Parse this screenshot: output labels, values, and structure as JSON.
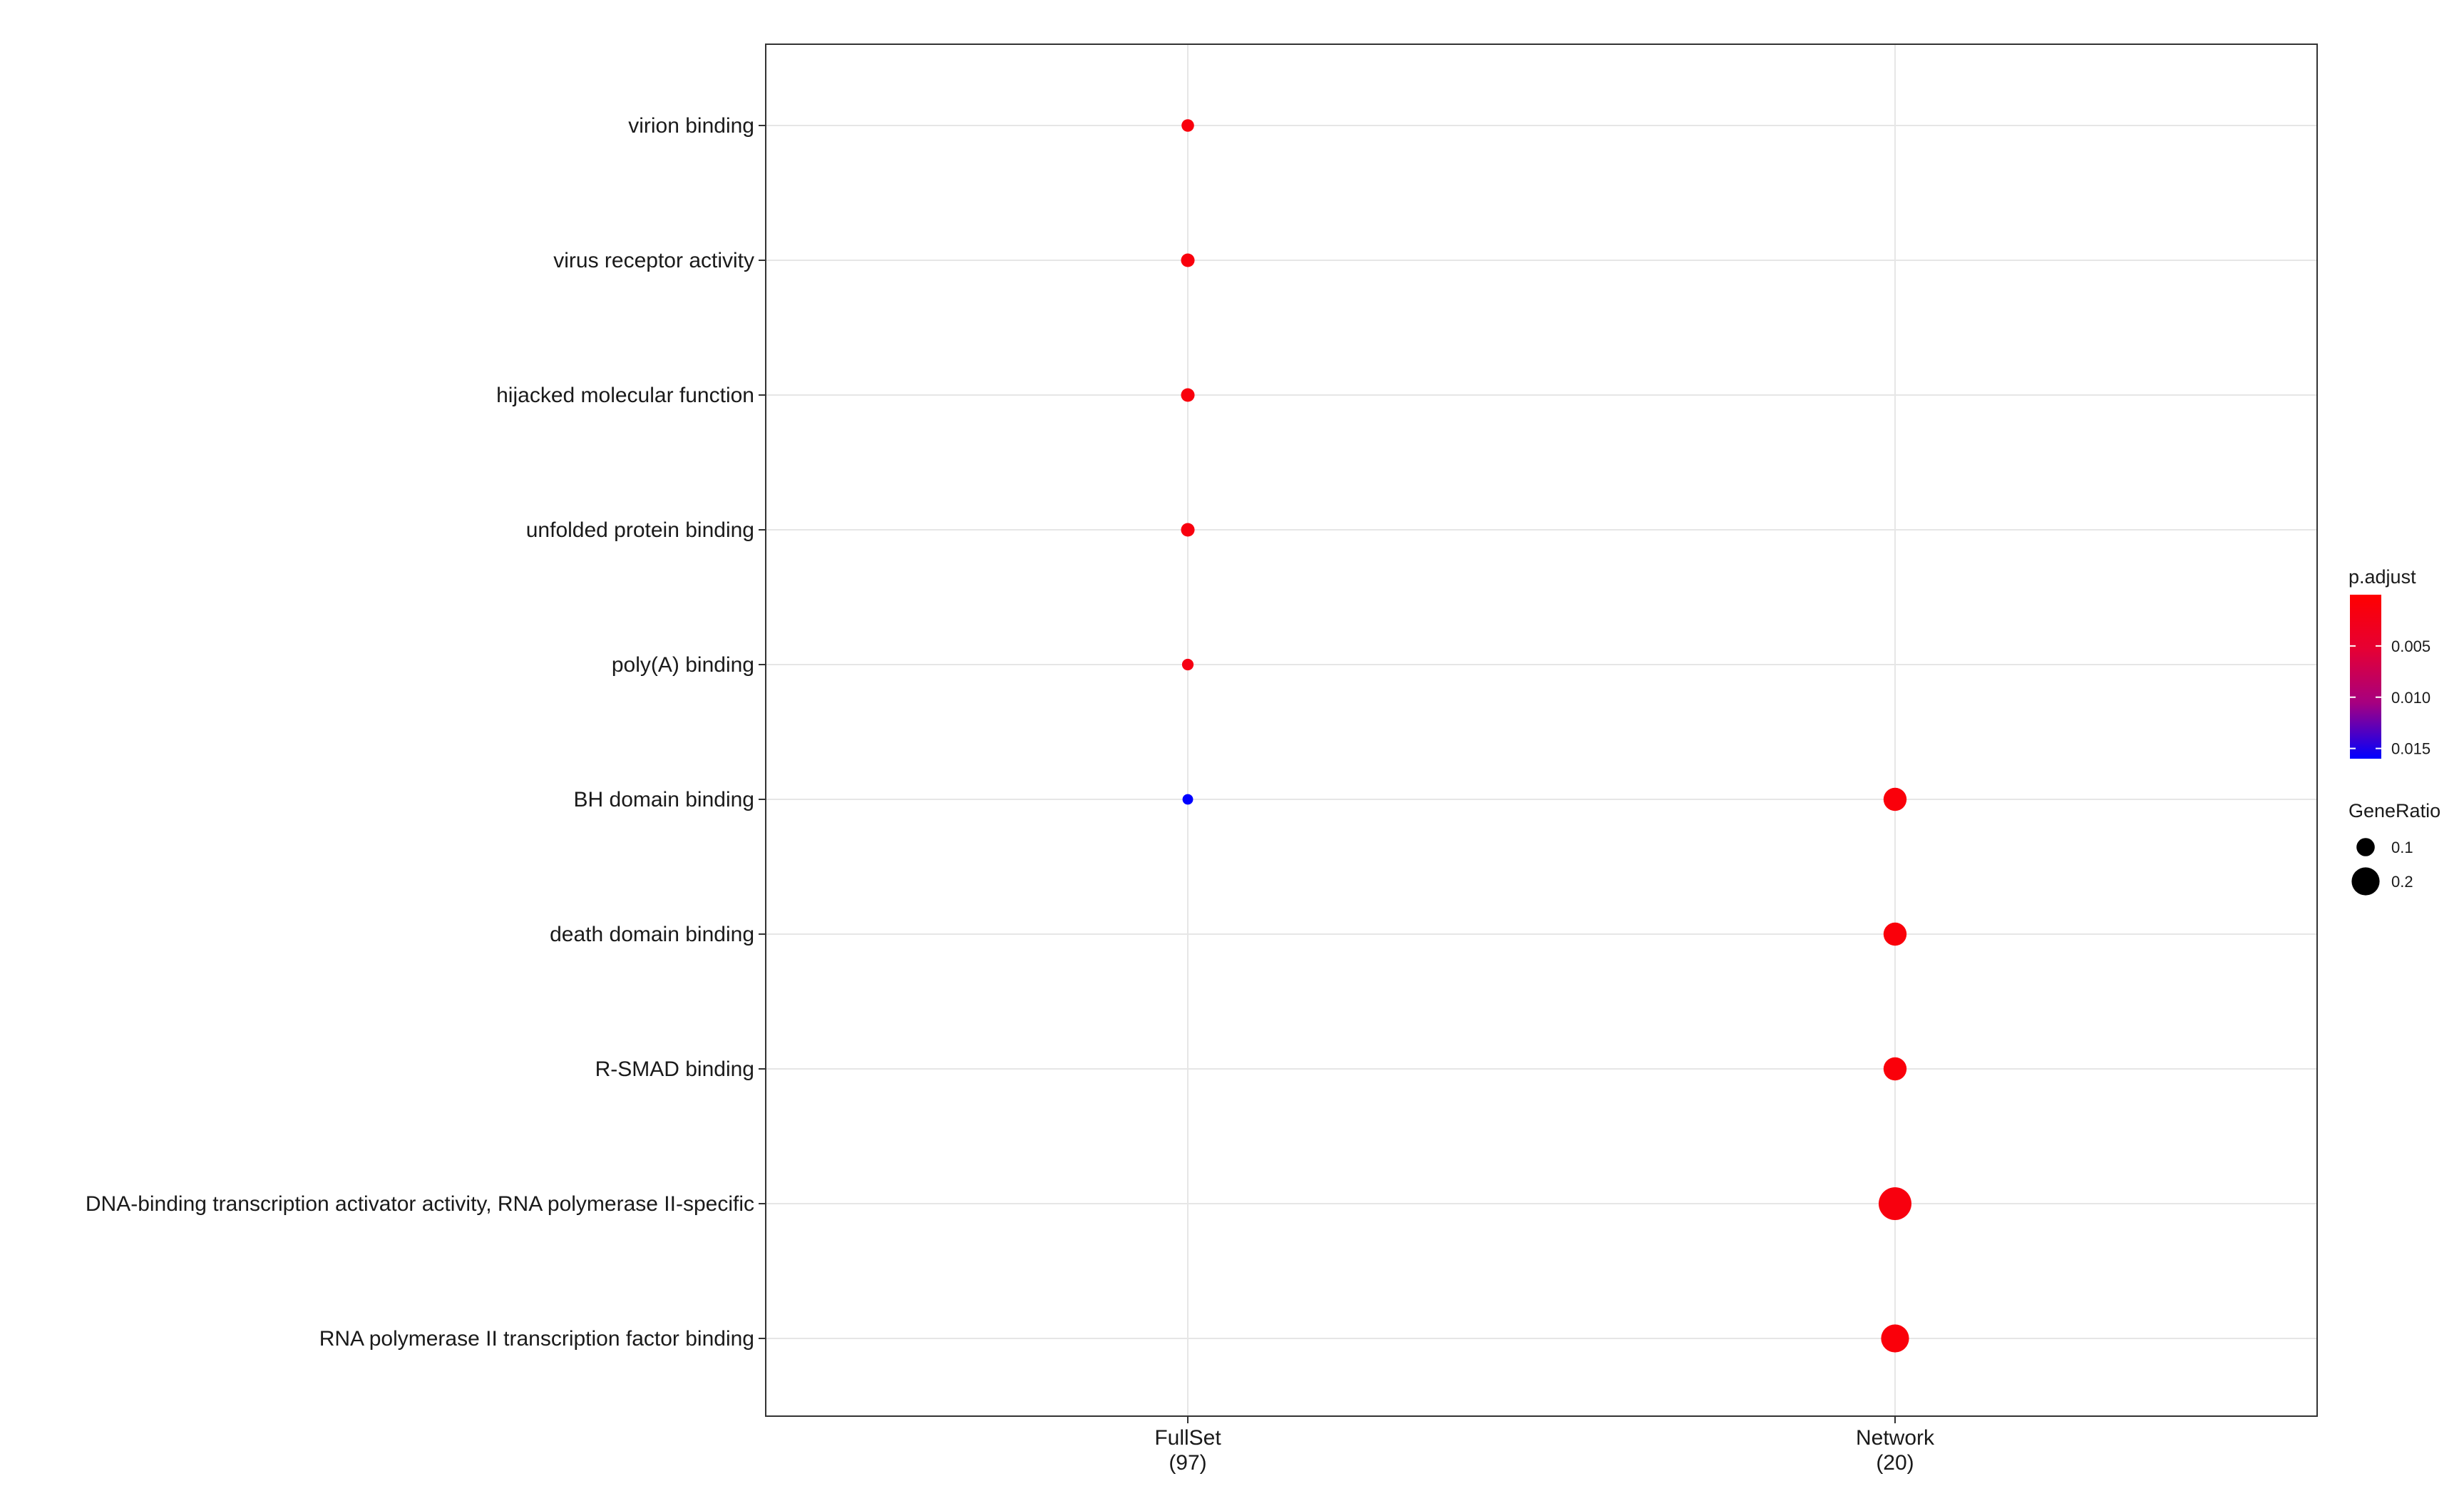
{
  "chart_data": {
    "type": "scatter",
    "categories_y": [
      "virion binding",
      "virus receptor activity",
      "hijacked molecular function",
      "unfolded protein binding",
      "poly(A) binding",
      "BH domain binding",
      "death domain binding",
      "R-SMAD binding",
      "DNA-binding transcription activator activity, RNA polymerase II-specific",
      "RNA polymerase II transcription factor binding"
    ],
    "categories_x": [
      {
        "name": "FullSet",
        "count": "(97)"
      },
      {
        "name": "Network",
        "count": "(20)"
      }
    ],
    "points": [
      {
        "x": "FullSet",
        "y": "virion binding",
        "gene_ratio": 0.041,
        "p_adjust": 0.0012
      },
      {
        "x": "FullSet",
        "y": "virus receptor activity",
        "gene_ratio": 0.052,
        "p_adjust": 0.0012
      },
      {
        "x": "FullSet",
        "y": "hijacked molecular function",
        "gene_ratio": 0.052,
        "p_adjust": 0.0012
      },
      {
        "x": "FullSet",
        "y": "unfolded protein binding",
        "gene_ratio": 0.052,
        "p_adjust": 0.0015
      },
      {
        "x": "FullSet",
        "y": "poly(A) binding",
        "gene_ratio": 0.031,
        "p_adjust": 0.002
      },
      {
        "x": "FullSet",
        "y": "BH domain binding",
        "gene_ratio": 0.021,
        "p_adjust": 0.016
      },
      {
        "x": "Network",
        "y": "BH domain binding",
        "gene_ratio": 0.15,
        "p_adjust": 0.001
      },
      {
        "x": "Network",
        "y": "death domain binding",
        "gene_ratio": 0.15,
        "p_adjust": 0.001
      },
      {
        "x": "Network",
        "y": "R-SMAD binding",
        "gene_ratio": 0.15,
        "p_adjust": 0.001
      },
      {
        "x": "Network",
        "y": "DNA-binding transcription activator activity, RNA polymerase II-specific",
        "gene_ratio": 0.25,
        "p_adjust": 0.0015
      },
      {
        "x": "Network",
        "y": "RNA polymerase II transcription factor binding",
        "gene_ratio": 0.2,
        "p_adjust": 0.001
      }
    ],
    "grid": true,
    "legend_placement": "right",
    "color_legend": {
      "title": "p.adjust",
      "low_color": "#ff0000",
      "high_color": "#0000ff",
      "range": [
        0,
        0.016
      ],
      "ticks": [
        {
          "value": 0.005,
          "label": "0.005"
        },
        {
          "value": 0.01,
          "label": "0.010"
        },
        {
          "value": 0.015,
          "label": "0.015"
        }
      ]
    },
    "size_legend": {
      "title": "GeneRatio",
      "entries": [
        {
          "value": 0.1,
          "label": "0.1"
        },
        {
          "value": 0.2,
          "label": "0.2"
        }
      ]
    }
  }
}
